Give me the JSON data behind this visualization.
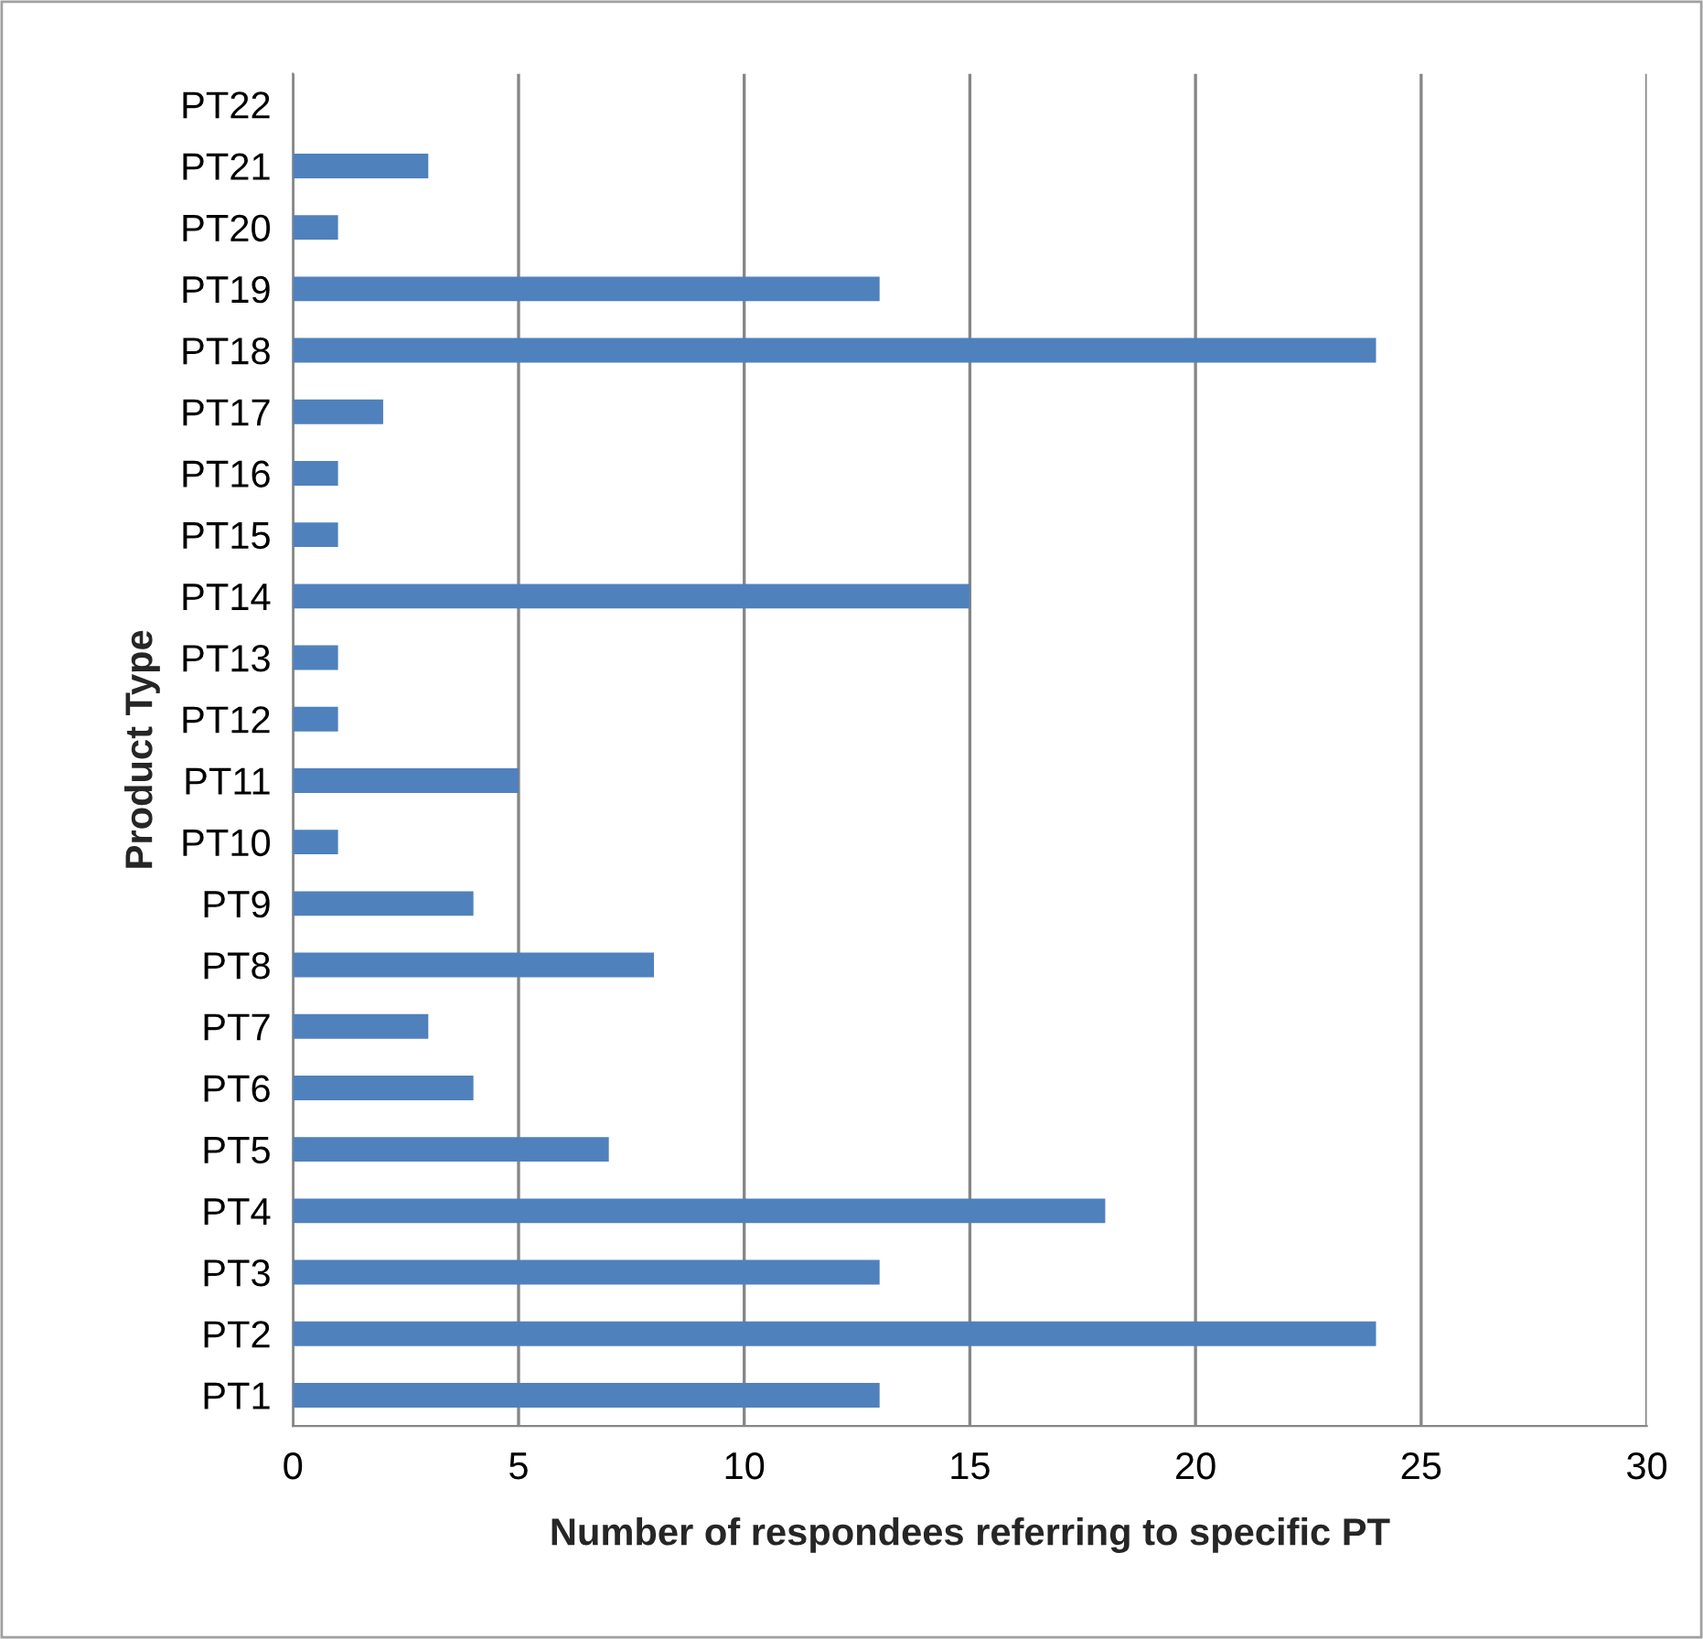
{
  "chart_data": {
    "type": "bar",
    "orientation": "horizontal",
    "xlabel": "Number of respondees referring to specific PT",
    "ylabel": "Product Type",
    "categories": [
      "PT22",
      "PT21",
      "PT20",
      "PT19",
      "PT18",
      "PT17",
      "PT16",
      "PT15",
      "PT14",
      "PT13",
      "PT12",
      "PT11",
      "PT10",
      "PT9",
      "PT8",
      "PT7",
      "PT6",
      "PT5",
      "PT4",
      "PT3",
      "PT2",
      "PT1"
    ],
    "values": [
      null,
      3,
      1,
      13,
      24,
      2,
      1,
      1,
      15,
      1,
      1,
      5,
      1,
      4,
      8,
      3,
      4,
      7,
      18,
      13,
      24,
      13
    ],
    "color": "#4f81bd",
    "xlim": [
      0,
      30
    ],
    "xticks": [
      0,
      5,
      10,
      15,
      20,
      25,
      30
    ],
    "grid": "x",
    "legend": false
  }
}
